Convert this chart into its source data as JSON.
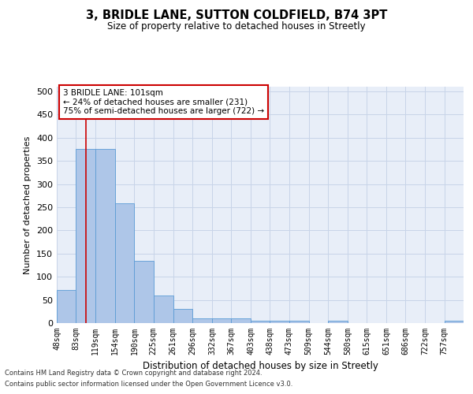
{
  "title1": "3, BRIDLE LANE, SUTTON COLDFIELD, B74 3PT",
  "title2": "Size of property relative to detached houses in Streetly",
  "xlabel": "Distribution of detached houses by size in Streetly",
  "ylabel": "Number of detached properties",
  "categories": [
    "48sqm",
    "83sqm",
    "119sqm",
    "154sqm",
    "190sqm",
    "225sqm",
    "261sqm",
    "296sqm",
    "332sqm",
    "367sqm",
    "403sqm",
    "438sqm",
    "473sqm",
    "509sqm",
    "544sqm",
    "580sqm",
    "615sqm",
    "651sqm",
    "686sqm",
    "722sqm",
    "757sqm"
  ],
  "values": [
    72,
    375,
    375,
    258,
    135,
    60,
    30,
    10,
    10,
    10,
    5,
    5,
    5,
    0,
    5,
    0,
    0,
    0,
    0,
    0,
    5
  ],
  "bar_color": "#aec6e8",
  "bar_edge_color": "#5b9bd5",
  "grid_color": "#c8d4e8",
  "background_color": "#e8eef8",
  "annotation_line1": "3 BRIDLE LANE: 101sqm",
  "annotation_line2": "← 24% of detached houses are smaller (231)",
  "annotation_line3": "75% of semi-detached houses are larger (722) →",
  "annotation_box_color": "#ffffff",
  "annotation_border_color": "#cc0000",
  "red_line_x": 101,
  "red_line_color": "#cc0000",
  "ylim": [
    0,
    510
  ],
  "yticks": [
    0,
    50,
    100,
    150,
    200,
    250,
    300,
    350,
    400,
    450,
    500
  ],
  "footnote1": "Contains HM Land Registry data © Crown copyright and database right 2024.",
  "footnote2": "Contains public sector information licensed under the Open Government Licence v3.0.",
  "bin_edges": [
    48,
    83,
    119,
    154,
    190,
    225,
    261,
    296,
    332,
    367,
    403,
    438,
    473,
    509,
    544,
    580,
    615,
    651,
    686,
    722,
    757,
    792
  ]
}
